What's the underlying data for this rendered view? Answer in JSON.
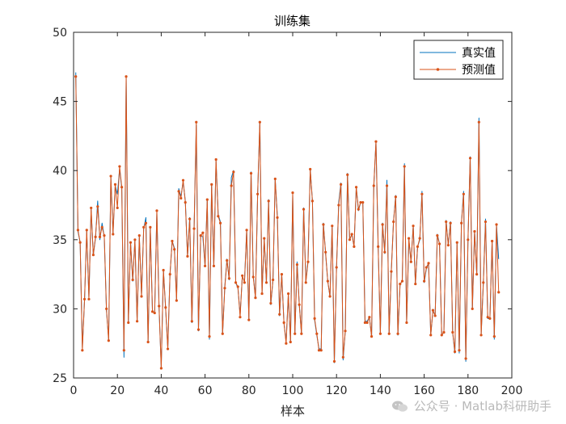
{
  "chart_data": {
    "type": "line",
    "title": "训练集",
    "xlabel": "样本",
    "ylabel": "",
    "xlim": [
      0,
      200
    ],
    "ylim": [
      25,
      50
    ],
    "xticks": [
      "0",
      "20",
      "40",
      "60",
      "80",
      "100",
      "120",
      "140",
      "160",
      "180",
      "200"
    ],
    "yticks": [
      "25",
      "30",
      "35",
      "40",
      "45",
      "50"
    ],
    "grid": false,
    "legend_position": "top-right",
    "series": [
      {
        "name": "真实值",
        "color": "#0072BD",
        "marker": "none",
        "values": [
          47.1,
          35.6,
          34.8,
          27.2,
          30.6,
          35.6,
          30.8,
          37.2,
          33.9,
          35.1,
          37.8,
          35.0,
          36.2,
          35.2,
          29.9,
          27.8,
          39.6,
          35.5,
          38.9,
          38.3,
          40.1,
          38.7,
          26.5,
          46.8,
          29.0,
          34.8,
          32.0,
          35.0,
          29.1,
          35.2,
          31.0,
          35.8,
          36.6,
          27.6,
          35.9,
          29.8,
          29.7,
          37.0,
          30.1,
          25.8,
          32.8,
          30.0,
          27.2,
          32.5,
          34.9,
          34.4,
          30.7,
          38.7,
          38.1,
          39.2,
          37.8,
          33.8,
          36.6,
          29.0,
          35.8,
          43.3,
          28.4,
          35.3,
          35.2,
          33.1,
          37.9,
          27.8,
          39.0,
          33.1,
          40.7,
          36.8,
          36.3,
          28.2,
          31.6,
          33.6,
          32.1,
          39.5,
          40.0,
          31.9,
          31.5,
          29.6,
          32.3,
          32.0,
          35.7,
          29.2,
          39.9,
          32.4,
          30.8,
          38.3,
          43.5,
          31.1,
          35.1,
          31.9,
          37.9,
          30.3,
          32.1,
          39.4,
          36.7,
          29.5,
          32.5,
          29.0,
          27.6,
          31.0,
          27.6,
          38.3,
          28.2,
          33.4,
          30.3,
          28.2,
          37.3,
          32.0,
          33.5,
          40.1,
          37.8,
          29.2,
          28.1,
          27.1,
          27.1,
          36.2,
          34.0,
          32.0,
          30.9,
          36.0,
          26.1,
          33.0,
          37.7,
          39.1,
          26.3,
          28.4,
          39.8,
          35.0,
          35.4,
          34.5,
          38.8,
          37.1,
          37.7,
          37.7,
          29.1,
          29.1,
          29.4,
          28.0,
          38.8,
          42.1,
          34.5,
          28.2,
          36.2,
          34.0,
          39.3,
          28.2,
          32.8,
          36.3,
          38.2,
          28.1,
          31.8,
          32.0,
          40.5,
          29.0,
          35.0,
          33.4,
          36.0,
          31.8,
          34.5,
          35.0,
          38.5,
          31.9,
          32.9,
          33.3,
          28.1,
          29.9,
          29.5,
          35.4,
          34.7,
          28.1,
          28.3,
          36.4,
          34.6,
          36.3,
          28.3,
          26.8,
          34.8,
          26.8,
          36.2,
          38.5,
          26.2,
          35.0,
          41.0,
          30.0,
          35.6,
          32.5,
          43.8,
          28.1,
          31.9,
          36.5,
          29.3,
          29.3,
          34.9,
          27.8,
          36.1,
          33.6
        ]
      },
      {
        "name": "预测值",
        "color": "#D95319",
        "marker": "dot",
        "values": [
          46.8,
          35.7,
          34.8,
          27.0,
          30.7,
          35.7,
          30.7,
          37.3,
          33.9,
          35.2,
          37.4,
          35.2,
          35.9,
          35.3,
          30.0,
          27.7,
          39.6,
          35.4,
          39.0,
          37.3,
          40.3,
          38.8,
          27.0,
          46.8,
          29.0,
          34.8,
          32.1,
          35.0,
          29.1,
          35.3,
          30.9,
          35.9,
          36.2,
          27.6,
          35.9,
          29.8,
          29.7,
          37.1,
          30.2,
          25.7,
          32.8,
          30.1,
          27.1,
          32.5,
          34.9,
          34.3,
          30.6,
          38.5,
          38.0,
          39.3,
          37.7,
          33.8,
          36.5,
          29.1,
          35.8,
          43.5,
          28.5,
          35.3,
          35.5,
          33.1,
          37.9,
          28.0,
          39.0,
          33.1,
          40.8,
          36.7,
          36.2,
          28.2,
          31.5,
          33.5,
          32.2,
          38.9,
          39.9,
          31.9,
          31.6,
          29.4,
          32.4,
          31.9,
          35.7,
          29.2,
          39.8,
          32.3,
          30.8,
          38.3,
          43.5,
          31.1,
          35.1,
          31.9,
          37.8,
          30.4,
          32.1,
          39.4,
          36.6,
          29.6,
          32.5,
          29.0,
          27.5,
          31.1,
          27.6,
          38.4,
          28.2,
          33.2,
          30.3,
          28.2,
          37.2,
          31.9,
          33.4,
          40.1,
          37.8,
          29.3,
          28.2,
          27.0,
          27.0,
          36.1,
          34.1,
          32.0,
          30.9,
          36.0,
          26.2,
          33.0,
          37.5,
          39.0,
          26.5,
          28.4,
          39.7,
          35.0,
          35.4,
          34.5,
          38.8,
          37.2,
          37.7,
          37.7,
          29.0,
          29.0,
          29.4,
          28.0,
          38.9,
          42.1,
          34.5,
          28.2,
          36.1,
          34.1,
          38.9,
          28.2,
          32.7,
          36.3,
          38.1,
          28.2,
          31.8,
          32.0,
          40.3,
          29.0,
          35.1,
          33.4,
          36.0,
          31.8,
          34.5,
          35.1,
          38.3,
          32.0,
          33.0,
          33.3,
          28.1,
          29.9,
          29.5,
          35.3,
          34.7,
          28.1,
          28.3,
          36.3,
          34.6,
          36.2,
          28.3,
          26.9,
          34.8,
          27.0,
          36.2,
          38.3,
          26.4,
          35.0,
          40.9,
          30.0,
          35.6,
          32.5,
          43.5,
          28.1,
          31.9,
          36.3,
          29.4,
          29.3,
          34.9,
          28.0,
          36.1,
          31.2
        ]
      }
    ]
  },
  "watermark": {
    "text": "公众号 · Matlab科研助手",
    "icon": "wechat-icon",
    "color": "#b9b9b9"
  }
}
